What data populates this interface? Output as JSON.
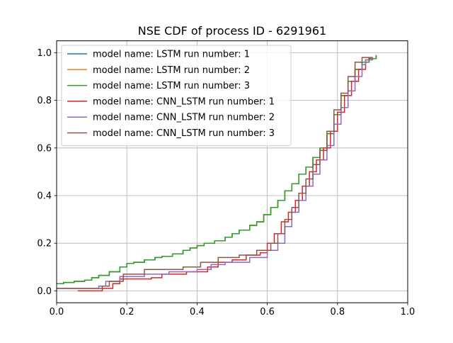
{
  "chart_data": {
    "type": "line",
    "title": "NSE CDF of process ID - 6291961",
    "xlabel": "",
    "ylabel": "",
    "xlim": [
      0.0,
      1.0
    ],
    "ylim": [
      -0.05,
      1.05
    ],
    "xticks": [
      "0.0",
      "0.2",
      "0.4",
      "0.6",
      "0.8",
      "1.0"
    ],
    "yticks": [
      "0.0",
      "0.2",
      "0.4",
      "0.6",
      "0.8",
      "1.0"
    ],
    "grid": true,
    "legend_position": "upper-left",
    "series": [
      {
        "name": "model name: LSTM run number: 1",
        "color": "#1f77b4",
        "points": [
          [
            0.0,
            0.03
          ],
          [
            0.02,
            0.035
          ],
          [
            0.05,
            0.04
          ],
          [
            0.08,
            0.045
          ],
          [
            0.1,
            0.055
          ],
          [
            0.12,
            0.065
          ],
          [
            0.15,
            0.08
          ],
          [
            0.18,
            0.1
          ],
          [
            0.2,
            0.115
          ],
          [
            0.22,
            0.12
          ],
          [
            0.25,
            0.13
          ],
          [
            0.28,
            0.14
          ],
          [
            0.3,
            0.145
          ],
          [
            0.33,
            0.155
          ],
          [
            0.36,
            0.17
          ],
          [
            0.38,
            0.18
          ],
          [
            0.4,
            0.19
          ],
          [
            0.42,
            0.2
          ],
          [
            0.45,
            0.21
          ],
          [
            0.48,
            0.225
          ],
          [
            0.5,
            0.24
          ],
          [
            0.52,
            0.255
          ],
          [
            0.55,
            0.275
          ],
          [
            0.57,
            0.29
          ],
          [
            0.59,
            0.32
          ],
          [
            0.61,
            0.35
          ],
          [
            0.63,
            0.38
          ],
          [
            0.65,
            0.42
          ],
          [
            0.67,
            0.45
          ],
          [
            0.69,
            0.49
          ],
          [
            0.71,
            0.52
          ],
          [
            0.73,
            0.56
          ],
          [
            0.75,
            0.6
          ],
          [
            0.77,
            0.66
          ],
          [
            0.79,
            0.74
          ],
          [
            0.81,
            0.82
          ],
          [
            0.83,
            0.88
          ],
          [
            0.85,
            0.93
          ],
          [
            0.87,
            0.96
          ],
          [
            0.89,
            0.975
          ],
          [
            0.91,
            0.99
          ]
        ]
      },
      {
        "name": "model name: LSTM run number: 2",
        "color": "#ff7f0e",
        "points": [
          [
            0.0,
            0.03
          ],
          [
            0.02,
            0.035
          ],
          [
            0.05,
            0.04
          ],
          [
            0.08,
            0.045
          ],
          [
            0.1,
            0.055
          ],
          [
            0.12,
            0.065
          ],
          [
            0.15,
            0.08
          ],
          [
            0.18,
            0.1
          ],
          [
            0.2,
            0.115
          ],
          [
            0.22,
            0.12
          ],
          [
            0.25,
            0.13
          ],
          [
            0.28,
            0.14
          ],
          [
            0.3,
            0.145
          ],
          [
            0.33,
            0.155
          ],
          [
            0.36,
            0.17
          ],
          [
            0.38,
            0.18
          ],
          [
            0.4,
            0.19
          ],
          [
            0.42,
            0.2
          ],
          [
            0.45,
            0.21
          ],
          [
            0.48,
            0.225
          ],
          [
            0.5,
            0.24
          ],
          [
            0.52,
            0.255
          ],
          [
            0.55,
            0.275
          ],
          [
            0.57,
            0.29
          ],
          [
            0.59,
            0.32
          ],
          [
            0.61,
            0.35
          ],
          [
            0.63,
            0.38
          ],
          [
            0.65,
            0.42
          ],
          [
            0.67,
            0.45
          ],
          [
            0.69,
            0.49
          ],
          [
            0.71,
            0.52
          ],
          [
            0.73,
            0.56
          ],
          [
            0.75,
            0.6
          ],
          [
            0.77,
            0.66
          ],
          [
            0.79,
            0.74
          ],
          [
            0.81,
            0.82
          ],
          [
            0.83,
            0.88
          ],
          [
            0.85,
            0.93
          ],
          [
            0.87,
            0.96
          ],
          [
            0.89,
            0.975
          ],
          [
            0.91,
            0.99
          ]
        ]
      },
      {
        "name": "model name: LSTM run number: 3",
        "color": "#2ca02c",
        "points": [
          [
            0.0,
            0.03
          ],
          [
            0.02,
            0.035
          ],
          [
            0.05,
            0.04
          ],
          [
            0.08,
            0.045
          ],
          [
            0.1,
            0.055
          ],
          [
            0.12,
            0.065
          ],
          [
            0.15,
            0.08
          ],
          [
            0.18,
            0.1
          ],
          [
            0.2,
            0.115
          ],
          [
            0.22,
            0.12
          ],
          [
            0.25,
            0.13
          ],
          [
            0.28,
            0.14
          ],
          [
            0.3,
            0.145
          ],
          [
            0.33,
            0.155
          ],
          [
            0.36,
            0.17
          ],
          [
            0.38,
            0.18
          ],
          [
            0.4,
            0.19
          ],
          [
            0.42,
            0.2
          ],
          [
            0.45,
            0.21
          ],
          [
            0.48,
            0.225
          ],
          [
            0.5,
            0.24
          ],
          [
            0.52,
            0.255
          ],
          [
            0.55,
            0.275
          ],
          [
            0.57,
            0.29
          ],
          [
            0.59,
            0.32
          ],
          [
            0.61,
            0.35
          ],
          [
            0.63,
            0.38
          ],
          [
            0.65,
            0.42
          ],
          [
            0.67,
            0.45
          ],
          [
            0.69,
            0.49
          ],
          [
            0.71,
            0.52
          ],
          [
            0.73,
            0.56
          ],
          [
            0.75,
            0.6
          ],
          [
            0.77,
            0.66
          ],
          [
            0.79,
            0.74
          ],
          [
            0.81,
            0.82
          ],
          [
            0.83,
            0.88
          ],
          [
            0.85,
            0.93
          ],
          [
            0.87,
            0.96
          ],
          [
            0.89,
            0.975
          ],
          [
            0.91,
            0.99
          ]
        ]
      },
      {
        "name": "model name: CNN_LSTM run number: 1",
        "color": "#d62728",
        "points": [
          [
            0.06,
            0.0
          ],
          [
            0.13,
            0.01
          ],
          [
            0.16,
            0.03
          ],
          [
            0.18,
            0.05
          ],
          [
            0.27,
            0.055
          ],
          [
            0.3,
            0.07
          ],
          [
            0.37,
            0.08
          ],
          [
            0.43,
            0.1
          ],
          [
            0.46,
            0.12
          ],
          [
            0.5,
            0.13
          ],
          [
            0.54,
            0.15
          ],
          [
            0.58,
            0.16
          ],
          [
            0.6,
            0.2
          ],
          [
            0.62,
            0.24
          ],
          [
            0.64,
            0.29
          ],
          [
            0.66,
            0.33
          ],
          [
            0.68,
            0.38
          ],
          [
            0.7,
            0.44
          ],
          [
            0.72,
            0.5
          ],
          [
            0.74,
            0.55
          ],
          [
            0.76,
            0.6
          ],
          [
            0.78,
            0.67
          ],
          [
            0.8,
            0.75
          ],
          [
            0.82,
            0.82
          ],
          [
            0.84,
            0.88
          ],
          [
            0.86,
            0.93
          ],
          [
            0.88,
            0.97
          ],
          [
            0.89,
            0.98
          ]
        ]
      },
      {
        "name": "model name: CNN_LSTM run number: 2",
        "color": "#9467bd",
        "points": [
          [
            0.0,
            0.01
          ],
          [
            0.12,
            0.02
          ],
          [
            0.14,
            0.04
          ],
          [
            0.18,
            0.06
          ],
          [
            0.25,
            0.07
          ],
          [
            0.32,
            0.08
          ],
          [
            0.4,
            0.09
          ],
          [
            0.44,
            0.11
          ],
          [
            0.48,
            0.12
          ],
          [
            0.55,
            0.14
          ],
          [
            0.6,
            0.17
          ],
          [
            0.63,
            0.2
          ],
          [
            0.65,
            0.27
          ],
          [
            0.67,
            0.33
          ],
          [
            0.69,
            0.38
          ],
          [
            0.71,
            0.44
          ],
          [
            0.73,
            0.49
          ],
          [
            0.75,
            0.55
          ],
          [
            0.77,
            0.61
          ],
          [
            0.79,
            0.7
          ],
          [
            0.81,
            0.77
          ],
          [
            0.83,
            0.84
          ],
          [
            0.85,
            0.9
          ],
          [
            0.87,
            0.95
          ],
          [
            0.88,
            0.97
          ],
          [
            0.9,
            0.98
          ]
        ]
      },
      {
        "name": "model name: CNN_LSTM run number: 3",
        "color": "#8c564b",
        "points": [
          [
            0.0,
            0.01
          ],
          [
            0.13,
            0.02
          ],
          [
            0.15,
            0.04
          ],
          [
            0.19,
            0.07
          ],
          [
            0.25,
            0.09
          ],
          [
            0.36,
            0.1
          ],
          [
            0.41,
            0.12
          ],
          [
            0.46,
            0.14
          ],
          [
            0.52,
            0.15
          ],
          [
            0.57,
            0.17
          ],
          [
            0.61,
            0.2
          ],
          [
            0.63,
            0.24
          ],
          [
            0.65,
            0.3
          ],
          [
            0.67,
            0.35
          ],
          [
            0.69,
            0.41
          ],
          [
            0.71,
            0.47
          ],
          [
            0.73,
            0.53
          ],
          [
            0.75,
            0.59
          ],
          [
            0.77,
            0.67
          ],
          [
            0.79,
            0.76
          ],
          [
            0.81,
            0.83
          ],
          [
            0.83,
            0.9
          ],
          [
            0.85,
            0.96
          ],
          [
            0.87,
            0.98
          ],
          [
            0.9,
            0.98
          ]
        ]
      }
    ]
  }
}
